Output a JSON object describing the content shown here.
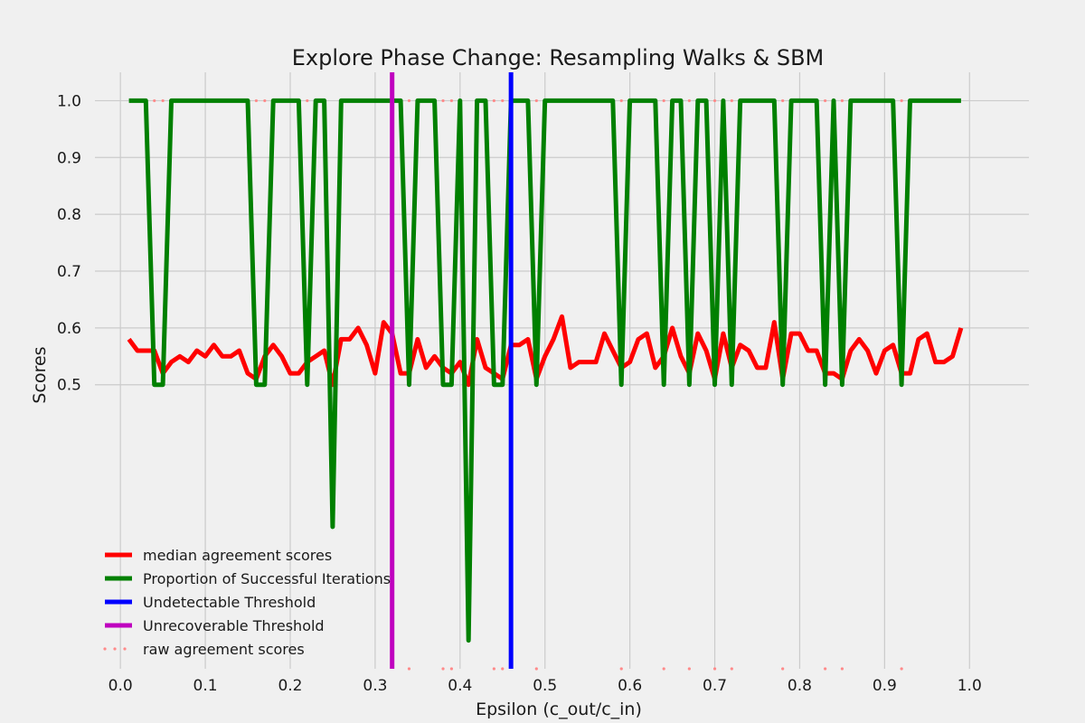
{
  "chart_data": {
    "type": "line",
    "title": "Explore Phase Change: Resampling Walks & SBM",
    "xlabel": "Epsilon (c_out/c_in)",
    "ylabel": "Scores",
    "xlim": [
      -0.03,
      1.07
    ],
    "ylim": [
      0.0,
      1.05
    ],
    "xticks": [
      0.0,
      0.1,
      0.2,
      0.3,
      0.4,
      0.5,
      0.6,
      0.7,
      0.8,
      0.9,
      1.0
    ],
    "xtick_labels": [
      "0.0",
      "0.1",
      "0.2",
      "0.3",
      "0.4",
      "0.5",
      "0.6",
      "0.7",
      "0.8",
      "0.9",
      "1.0"
    ],
    "yticks": [
      0.5,
      0.6,
      0.7,
      0.8,
      0.9,
      1.0
    ],
    "ytick_labels": [
      "0.5",
      "0.6",
      "0.7",
      "0.8",
      "0.9",
      "1.0"
    ],
    "grid": true,
    "legend_position": "lower-left",
    "x": [
      0.01,
      0.02,
      0.03,
      0.04,
      0.05,
      0.06,
      0.07,
      0.08,
      0.09,
      0.1,
      0.11,
      0.12,
      0.13,
      0.14,
      0.15,
      0.16,
      0.17,
      0.18,
      0.19,
      0.2,
      0.21,
      0.22,
      0.23,
      0.24,
      0.25,
      0.26,
      0.27,
      0.28,
      0.29,
      0.3,
      0.31,
      0.32,
      0.33,
      0.34,
      0.35,
      0.36,
      0.37,
      0.38,
      0.39,
      0.4,
      0.41,
      0.42,
      0.43,
      0.44,
      0.45,
      0.46,
      0.47,
      0.48,
      0.49,
      0.5,
      0.51,
      0.52,
      0.53,
      0.54,
      0.55,
      0.56,
      0.57,
      0.58,
      0.59,
      0.6,
      0.61,
      0.62,
      0.63,
      0.64,
      0.65,
      0.66,
      0.67,
      0.68,
      0.69,
      0.7,
      0.71,
      0.72,
      0.73,
      0.74,
      0.75,
      0.76,
      0.77,
      0.78,
      0.79,
      0.8,
      0.81,
      0.82,
      0.83,
      0.84,
      0.85,
      0.86,
      0.87,
      0.88,
      0.89,
      0.9,
      0.91,
      0.92,
      0.93,
      0.94,
      0.95,
      0.96,
      0.97,
      0.98,
      0.99
    ],
    "series": [
      {
        "name": "median agreement scores",
        "color": "#ff0000",
        "style": "line",
        "values": [
          0.58,
          0.56,
          0.56,
          0.56,
          0.52,
          0.54,
          0.55,
          0.54,
          0.56,
          0.55,
          0.57,
          0.55,
          0.55,
          0.56,
          0.52,
          0.51,
          0.55,
          0.57,
          0.55,
          0.52,
          0.52,
          0.54,
          0.55,
          0.56,
          0.5,
          0.58,
          0.58,
          0.6,
          0.57,
          0.52,
          0.61,
          0.59,
          0.52,
          0.52,
          0.58,
          0.53,
          0.55,
          0.53,
          0.52,
          0.54,
          0.5,
          0.58,
          0.53,
          0.52,
          0.51,
          0.57,
          0.57,
          0.58,
          0.51,
          0.55,
          0.58,
          0.62,
          0.53,
          0.54,
          0.54,
          0.54,
          0.59,
          0.56,
          0.53,
          0.54,
          0.58,
          0.59,
          0.53,
          0.55,
          0.6,
          0.55,
          0.52,
          0.59,
          0.56,
          0.51,
          0.59,
          0.53,
          0.57,
          0.56,
          0.53,
          0.53,
          0.61,
          0.51,
          0.59,
          0.59,
          0.56,
          0.56,
          0.52,
          0.52,
          0.51,
          0.56,
          0.58,
          0.56,
          0.52,
          0.56,
          0.57,
          0.52,
          0.52,
          0.58,
          0.59,
          0.54,
          0.54,
          0.55,
          0.6
        ]
      },
      {
        "name": "Proportion of Successful Iterations",
        "color": "#008000",
        "style": "line",
        "values": [
          1.0,
          1.0,
          1.0,
          0.5,
          0.5,
          1.0,
          1.0,
          1.0,
          1.0,
          1.0,
          1.0,
          1.0,
          1.0,
          1.0,
          1.0,
          0.5,
          0.5,
          1.0,
          1.0,
          1.0,
          1.0,
          0.5,
          1.0,
          1.0,
          0.25,
          1.0,
          1.0,
          1.0,
          1.0,
          1.0,
          1.0,
          1.0,
          1.0,
          0.5,
          1.0,
          1.0,
          1.0,
          0.5,
          0.5,
          1.0,
          0.05,
          1.0,
          1.0,
          0.5,
          0.5,
          1.0,
          1.0,
          1.0,
          0.5,
          1.0,
          1.0,
          1.0,
          1.0,
          1.0,
          1.0,
          1.0,
          1.0,
          1.0,
          0.5,
          1.0,
          1.0,
          1.0,
          1.0,
          0.5,
          1.0,
          1.0,
          0.5,
          1.0,
          1.0,
          0.5,
          1.0,
          0.5,
          1.0,
          1.0,
          1.0,
          1.0,
          1.0,
          0.5,
          1.0,
          1.0,
          1.0,
          1.0,
          0.5,
          1.0,
          0.5,
          1.0,
          1.0,
          1.0,
          1.0,
          1.0,
          1.0,
          0.5,
          1.0,
          1.0,
          1.0,
          1.0,
          1.0,
          1.0,
          1.0
        ]
      },
      {
        "name": "Undetectable Threshold",
        "color": "#0000ff",
        "style": "vline",
        "x_value": 0.46
      },
      {
        "name": "Unrecoverable Threshold",
        "color": "#bf00bf",
        "style": "vline",
        "x_value": 0.32
      },
      {
        "name": "raw agreement scores",
        "color": "#ff8a8a",
        "style": "dots",
        "points": [
          [
            0.04,
            1.0
          ],
          [
            0.05,
            1.0
          ],
          [
            0.16,
            1.0
          ],
          [
            0.17,
            1.0
          ],
          [
            0.22,
            1.0
          ],
          [
            0.34,
            1.0
          ],
          [
            0.38,
            1.0
          ],
          [
            0.39,
            1.0
          ],
          [
            0.44,
            1.0
          ],
          [
            0.45,
            1.0
          ],
          [
            0.49,
            1.0
          ],
          [
            0.59,
            1.0
          ],
          [
            0.64,
            1.0
          ],
          [
            0.67,
            1.0
          ],
          [
            0.7,
            1.0
          ],
          [
            0.72,
            1.0
          ],
          [
            0.78,
            1.0
          ],
          [
            0.83,
            1.0
          ],
          [
            0.85,
            1.0
          ],
          [
            0.92,
            1.0
          ],
          [
            0.34,
            0.0
          ],
          [
            0.38,
            0.0
          ],
          [
            0.39,
            0.0
          ],
          [
            0.44,
            0.0
          ],
          [
            0.45,
            0.0
          ],
          [
            0.49,
            0.0
          ],
          [
            0.59,
            0.0
          ],
          [
            0.64,
            0.0
          ],
          [
            0.67,
            0.0
          ],
          [
            0.7,
            0.0
          ],
          [
            0.72,
            0.0
          ],
          [
            0.78,
            0.0
          ],
          [
            0.83,
            0.0
          ],
          [
            0.85,
            0.0
          ],
          [
            0.92,
            0.0
          ]
        ]
      }
    ]
  }
}
